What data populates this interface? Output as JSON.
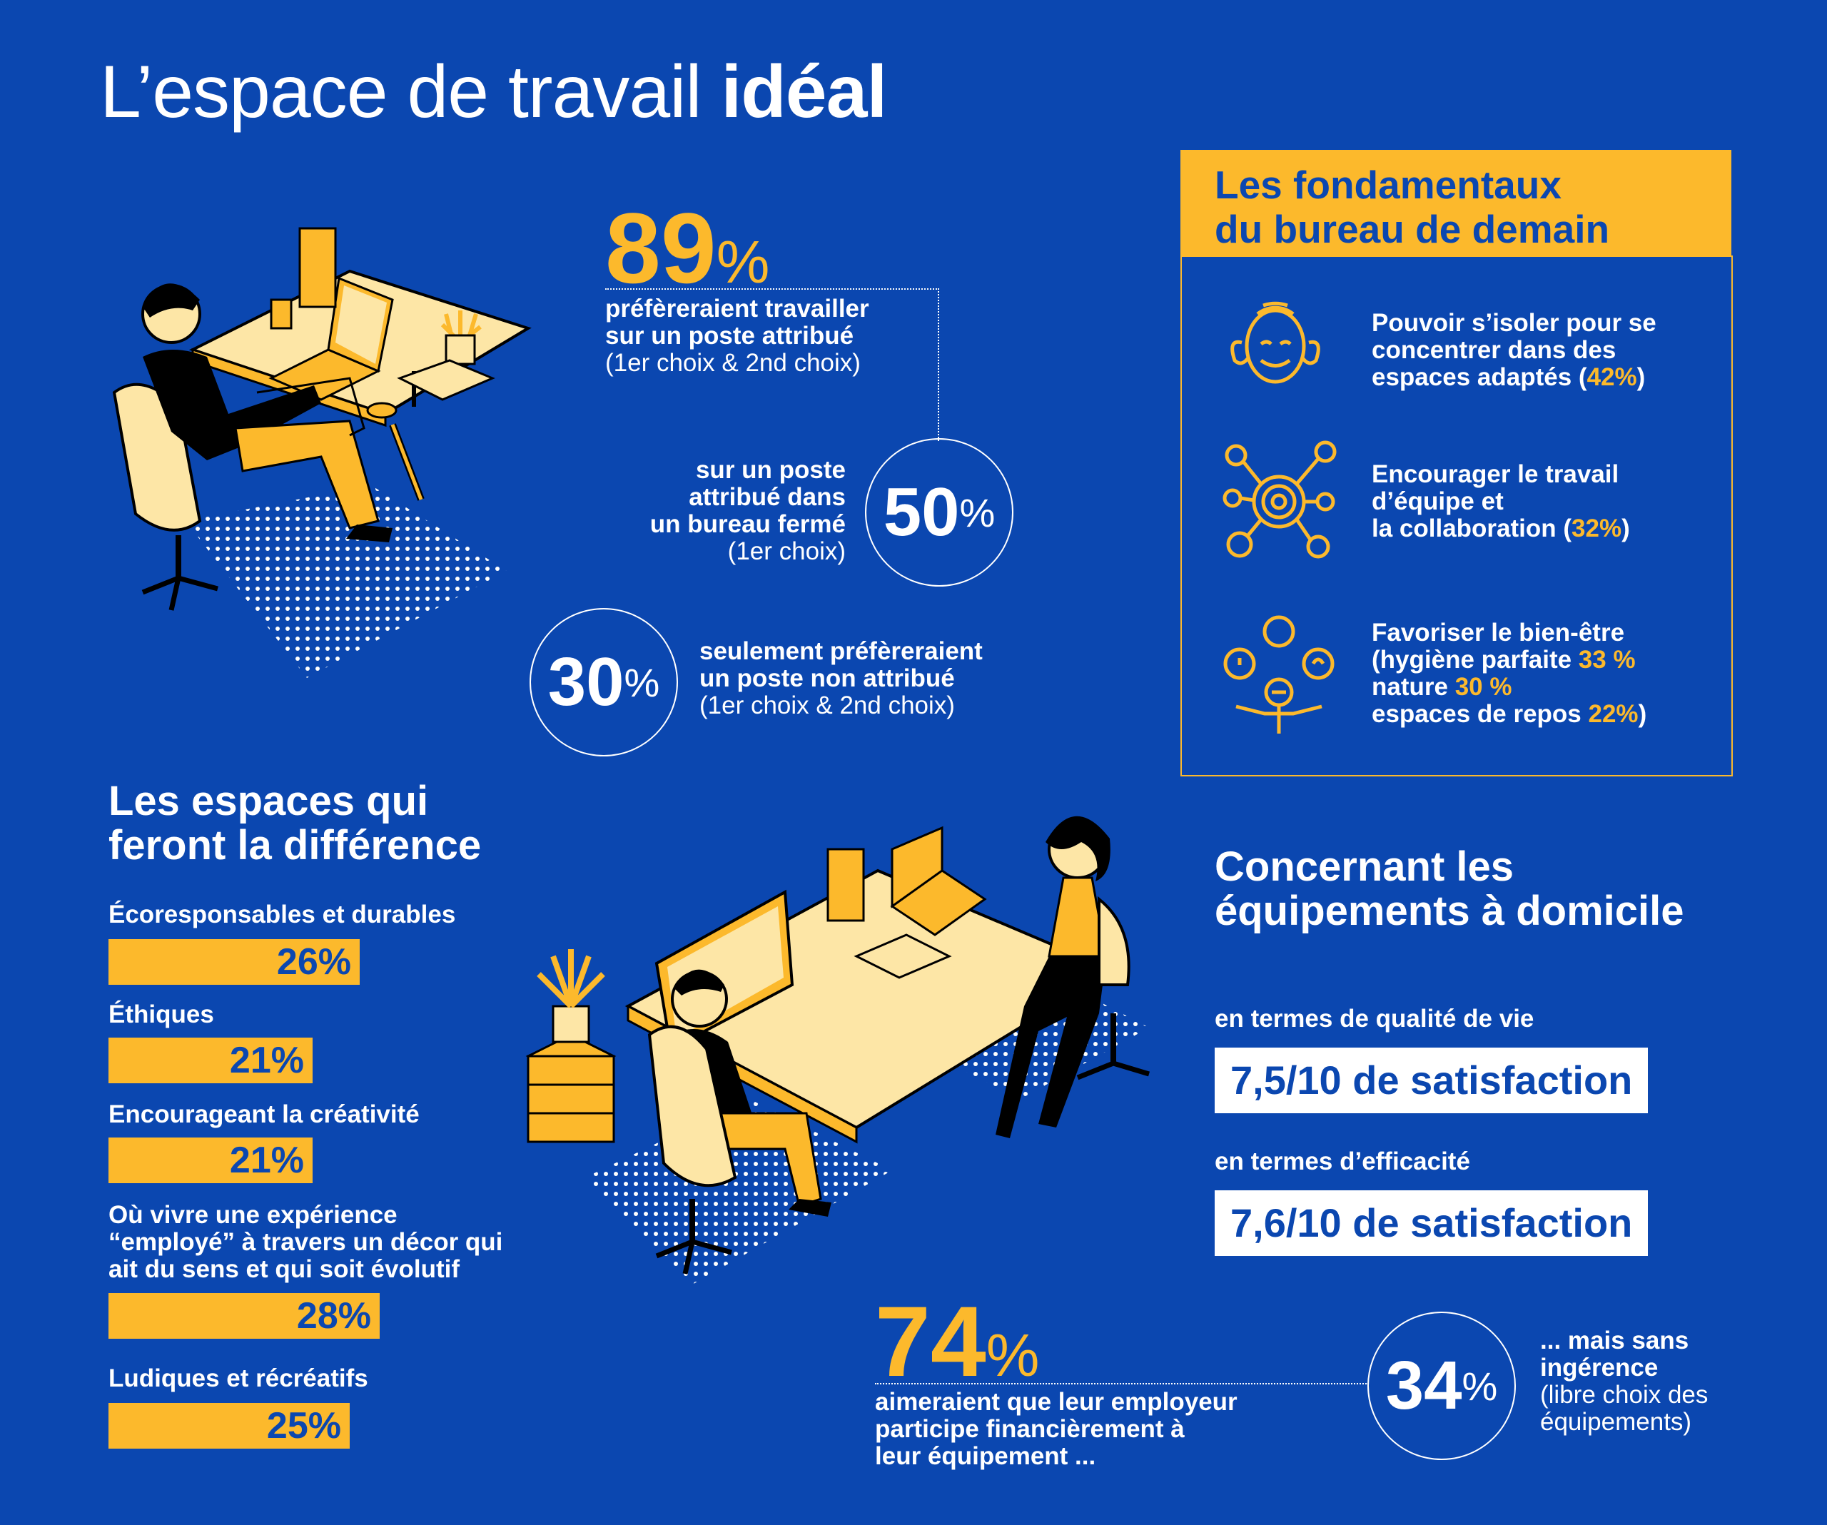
{
  "title": {
    "regular": "L’espace de travail ",
    "bold": "idéal"
  },
  "stat89": {
    "number": "89",
    "pct": "%",
    "line1": "préfèreraient travailler",
    "line2": "sur un poste attribué",
    "note": "(1er choix & 2nd choix)"
  },
  "stat50": {
    "number": "50",
    "pct": "%",
    "line1": "sur un poste",
    "line2": "attribué dans",
    "line3": "un bureau fermé",
    "note": "(1er choix)"
  },
  "stat30": {
    "number": "30",
    "pct": "%",
    "line1": "seulement préfèreraient",
    "line2": "un poste non attribué",
    "note": "(1er choix & 2nd choix)"
  },
  "fondamentaux": {
    "title_line1": "Les fondamentaux",
    "title_line2": "du bureau de demain",
    "items": [
      {
        "icon": "focus-head-icon",
        "l1": "Pouvoir s’isoler pour se",
        "l2": "concentrer dans des",
        "l3": "espaces adaptés (",
        "pct": "42%",
        "end": ")"
      },
      {
        "icon": "network-icon",
        "l1": "Encourager le travail",
        "l2": "d’équipe et",
        "l3": "la collaboration (",
        "pct": "32%",
        "end": ")"
      },
      {
        "icon": "wellbeing-icon",
        "l1": "Favoriser le bien-être",
        "l2": "(hygiène parfaite ",
        "l2pct": "33 %",
        "l3": "nature ",
        "l3pct": "30 %",
        "l4": "espaces de repos ",
        "l4pct": "22%",
        "end": ")"
      }
    ]
  },
  "espaces": {
    "title_line1": "Les espaces qui",
    "title_line2": "feront la différence",
    "items": [
      {
        "label": "Écoresponsables et durables",
        "value": "26%",
        "pct": 26
      },
      {
        "label": "Éthiques",
        "value": "21%",
        "pct": 21
      },
      {
        "label": "Encourageant la créativité",
        "value": "21%",
        "pct": 21
      },
      {
        "label_l1": "Où vivre une expérience",
        "label_l2": "“employé” à travers un décor qui",
        "label_l3": "ait du sens et qui soit évolutif",
        "value": "28%",
        "pct": 28
      },
      {
        "label": "Ludiques et récréatifs",
        "value": "25%",
        "pct": 25
      }
    ]
  },
  "equipements": {
    "title_line1": "Concernant les",
    "title_line2": "équipements à domicile",
    "quality_label": "en termes de qualité de vie",
    "quality_value": "7,5/10 de satisfaction",
    "efficiency_label": "en termes d’efficacité",
    "efficiency_value": "7,6/10 de satisfaction"
  },
  "stat74": {
    "number": "74",
    "pct": "%",
    "line1": "aimeraient que leur employeur",
    "line2": "participe financièrement à",
    "line3": "leur équipement ..."
  },
  "stat34": {
    "number": "34",
    "pct": "%",
    "line1": "... mais sans",
    "line2": "ingérence",
    "line3": "(libre choix des",
    "line4": "équipements)"
  },
  "colors": {
    "background": "#0b47b0",
    "accent": "#fcb92c",
    "white": "#ffffff"
  }
}
